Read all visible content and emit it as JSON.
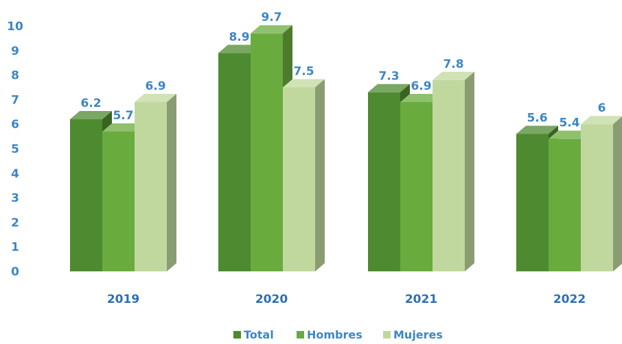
{
  "chart_data": {
    "type": "bar",
    "categories": [
      "2019",
      "2020",
      "2021",
      "2022"
    ],
    "series": [
      {
        "name": "Total",
        "values": [
          6.2,
          8.9,
          7.3,
          5.6
        ],
        "color": "#4e8a2f"
      },
      {
        "name": "Hombres",
        "values": [
          5.7,
          9.7,
          6.9,
          5.4
        ],
        "color": "#6aab3e"
      },
      {
        "name": "Mujeres",
        "values": [
          6.9,
          7.5,
          7.8,
          6
        ],
        "color": "#c0d89e"
      }
    ],
    "data_labels": [
      [
        "6.2",
        "8.9",
        "7.3",
        "5.6"
      ],
      [
        "5.7",
        "9.7",
        "6.9",
        "5.4"
      ],
      [
        "6.9",
        "7.5",
        "7.8",
        "6"
      ]
    ],
    "yticks": [
      "0",
      "1",
      "2",
      "3",
      "4",
      "5",
      "6",
      "7",
      "8",
      "9",
      "10"
    ],
    "ylim": [
      0,
      10
    ],
    "legend_position": "bottom",
    "grid": false,
    "style": "3d-columns",
    "title": "",
    "xlabel": "",
    "ylabel": ""
  }
}
